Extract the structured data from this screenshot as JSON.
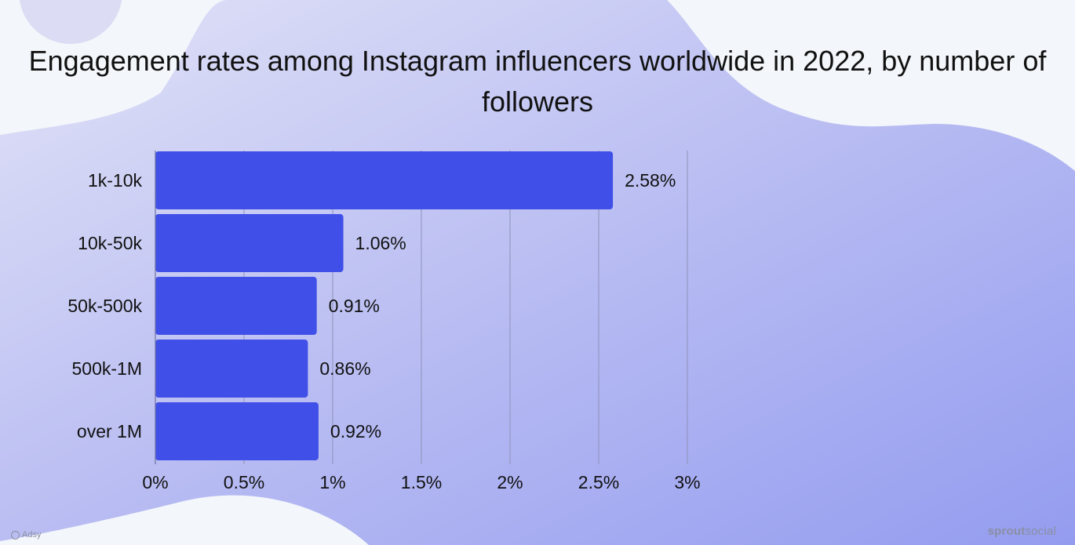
{
  "chart_data": {
    "type": "bar",
    "orientation": "horizontal",
    "title": "Engagement rates among Instagram influencers worldwide in 2022, by number of followers",
    "categories": [
      "1k-10k",
      "10k-50k",
      "50k-500k",
      "500k-1M",
      "over 1M"
    ],
    "values": [
      2.58,
      1.06,
      0.91,
      0.86,
      0.92
    ],
    "value_labels": [
      "2.58%",
      "1.06%",
      "0.91%",
      "0.86%",
      "0.92%"
    ],
    "x_ticks": [
      "0%",
      "0.5%",
      "1%",
      "1.5%",
      "2%",
      "2.5%",
      "3%"
    ],
    "x_tick_values": [
      0,
      0.5,
      1,
      1.5,
      2,
      2.5,
      3
    ],
    "xlim": [
      0,
      3
    ],
    "grid": true,
    "bar_color": "#3f4fe8",
    "grid_color": "#8f92b8"
  },
  "branding": {
    "source": "sproutsocial",
    "source_bold": "sprout",
    "source_rest": "social",
    "watermark": "Adsy"
  },
  "colors": {
    "background": "#f3f6fa",
    "blob_start": "#dfe0f6",
    "blob_end": "#969ef1"
  }
}
